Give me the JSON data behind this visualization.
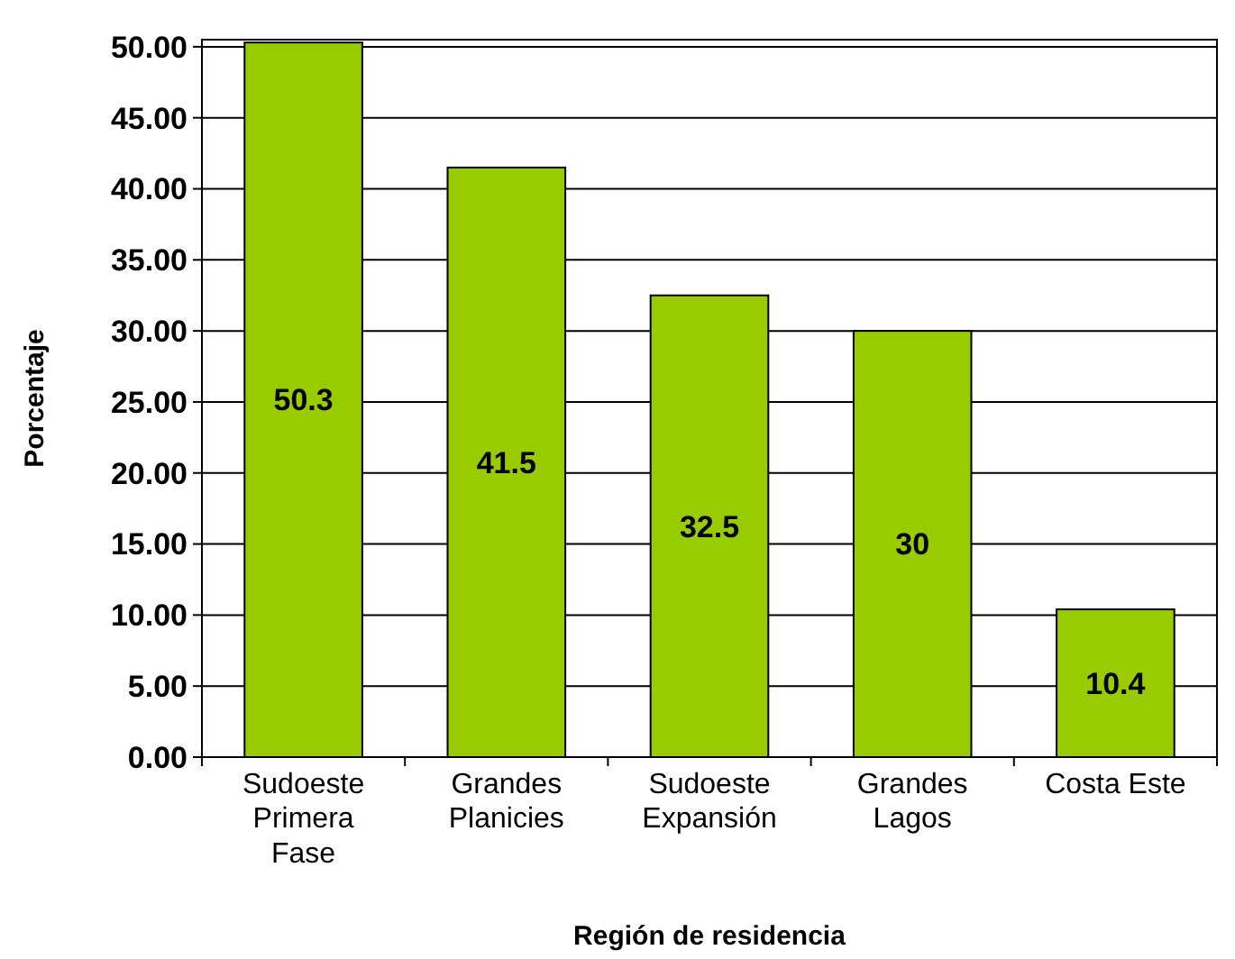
{
  "chart_data": {
    "type": "bar",
    "xlabel": "Región de residencia",
    "ylabel": "Porcentaje",
    "categories": [
      "Sudoeste Primera Fase",
      "Grandes Planicies",
      "Sudoeste Expansión",
      "Grandes Lagos",
      "Costa Este"
    ],
    "values": [
      50.3,
      41.5,
      32.5,
      30,
      10.4
    ],
    "color": "#99cc00",
    "data_labels": true,
    "grid": "y",
    "ylim": [
      0,
      50.5
    ],
    "yticks": [
      {
        "value": 0,
        "label": "0.00"
      },
      {
        "value": 5,
        "label": "5.00"
      },
      {
        "value": 10,
        "label": "10.00"
      },
      {
        "value": 15,
        "label": "15.00"
      },
      {
        "value": 20,
        "label": "20.00"
      },
      {
        "value": 25,
        "label": "25.00"
      },
      {
        "value": 30,
        "label": "30.00"
      },
      {
        "value": 35,
        "label": "35.00"
      },
      {
        "value": 40,
        "label": "40.00"
      },
      {
        "value": 45,
        "label": "45.00"
      },
      {
        "value": 50,
        "label": "50.00"
      }
    ]
  }
}
